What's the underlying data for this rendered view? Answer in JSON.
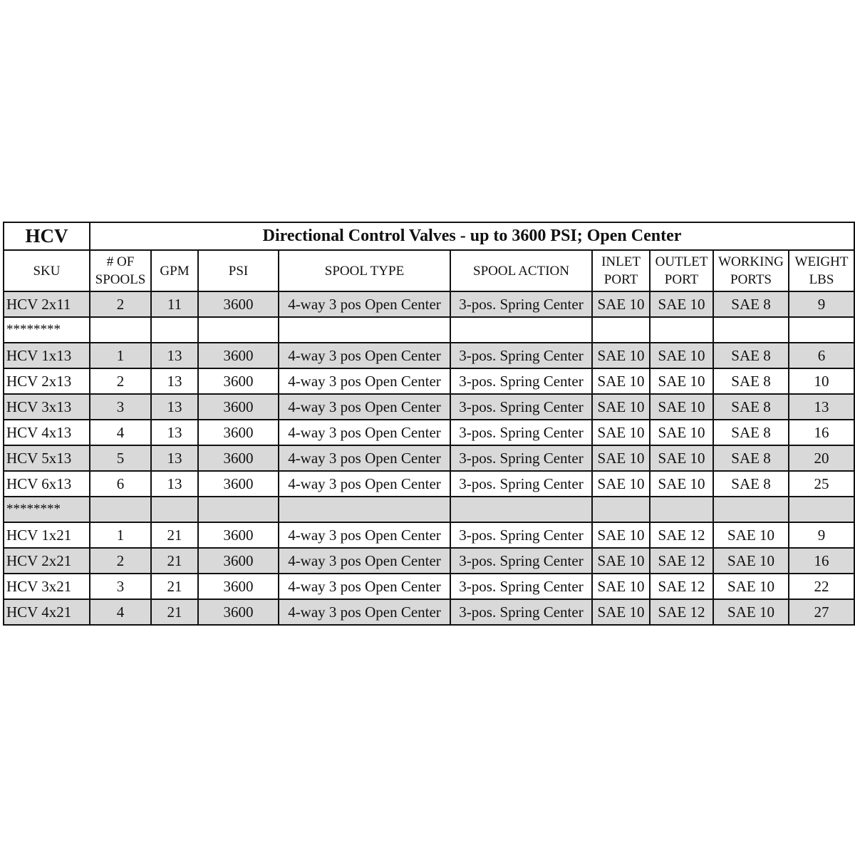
{
  "brand": "HCV",
  "title": "Directional Control Valves - up to 3600 PSI; Open Center",
  "columns": [
    "SKU",
    "# OF\nSPOOLS",
    "GPM",
    "PSI",
    "SPOOL TYPE",
    "SPOOL ACTION",
    "INLET\nPORT",
    "OUTLET\nPORT",
    "WORKING\nPORTS",
    "WEIGHT\nLBS"
  ],
  "shade_color": "#d9d9d9",
  "rows": [
    {
      "shaded": true,
      "cells": [
        "HCV 2x11",
        "2",
        "11",
        "3600",
        "4-way 3 pos Open Center",
        "3-pos. Spring Center",
        "SAE 10",
        "SAE 10",
        "SAE 8",
        "9"
      ]
    },
    {
      "shaded": false,
      "separator": "********"
    },
    {
      "shaded": true,
      "cells": [
        "HCV 1x13",
        "1",
        "13",
        "3600",
        "4-way 3 pos Open Center",
        "3-pos. Spring Center",
        "SAE 10",
        "SAE 10",
        "SAE 8",
        "6"
      ]
    },
    {
      "shaded": false,
      "cells": [
        "HCV 2x13",
        "2",
        "13",
        "3600",
        "4-way 3 pos Open Center",
        "3-pos. Spring Center",
        "SAE 10",
        "SAE 10",
        "SAE 8",
        "10"
      ]
    },
    {
      "shaded": true,
      "cells": [
        "HCV 3x13",
        "3",
        "13",
        "3600",
        "4-way 3 pos Open Center",
        "3-pos. Spring Center",
        "SAE 10",
        "SAE 10",
        "SAE 8",
        "13"
      ]
    },
    {
      "shaded": false,
      "cells": [
        "HCV 4x13",
        "4",
        "13",
        "3600",
        "4-way 3 pos Open Center",
        "3-pos. Spring Center",
        "SAE 10",
        "SAE 10",
        "SAE 8",
        "16"
      ]
    },
    {
      "shaded": true,
      "cells": [
        "HCV 5x13",
        "5",
        "13",
        "3600",
        "4-way 3 pos Open Center",
        "3-pos. Spring Center",
        "SAE 10",
        "SAE 10",
        "SAE 8",
        "20"
      ]
    },
    {
      "shaded": false,
      "cells": [
        "HCV 6x13",
        "6",
        "13",
        "3600",
        "4-way 3 pos Open Center",
        "3-pos. Spring Center",
        "SAE 10",
        "SAE 10",
        "SAE 8",
        "25"
      ]
    },
    {
      "shaded": true,
      "separator": "********"
    },
    {
      "shaded": false,
      "cells": [
        "HCV 1x21",
        "1",
        "21",
        "3600",
        "4-way 3 pos Open Center",
        "3-pos. Spring Center",
        "SAE 10",
        "SAE 12",
        "SAE 10",
        "9"
      ]
    },
    {
      "shaded": true,
      "cells": [
        "HCV 2x21",
        "2",
        "21",
        "3600",
        "4-way 3 pos Open Center",
        "3-pos. Spring Center",
        "SAE 10",
        "SAE 12",
        "SAE 10",
        "16"
      ]
    },
    {
      "shaded": false,
      "cells": [
        "HCV 3x21",
        "3",
        "21",
        "3600",
        "4-way 3 pos Open Center",
        "3-pos. Spring Center",
        "SAE 10",
        "SAE 12",
        "SAE 10",
        "22"
      ]
    },
    {
      "shaded": true,
      "cells": [
        "HCV 4x21",
        "4",
        "21",
        "3600",
        "4-way 3 pos Open Center",
        "3-pos. Spring Center",
        "SAE 10",
        "SAE 12",
        "SAE 10",
        "27"
      ]
    }
  ]
}
